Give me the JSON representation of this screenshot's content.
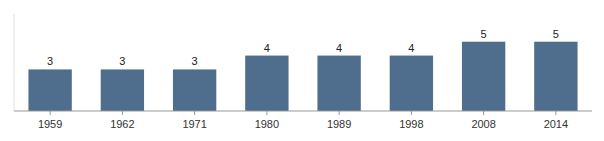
{
  "chart_data": {
    "type": "bar",
    "categories": [
      "1959",
      "1962",
      "1971",
      "1980",
      "1989",
      "1998",
      "2008",
      "2014"
    ],
    "values": [
      3,
      3,
      3,
      4,
      4,
      4,
      5,
      5
    ],
    "color": "#4f6d8c",
    "ylim": [
      0,
      7.0
    ],
    "data_labels": true,
    "tick_labels": "x",
    "grid": false
  }
}
